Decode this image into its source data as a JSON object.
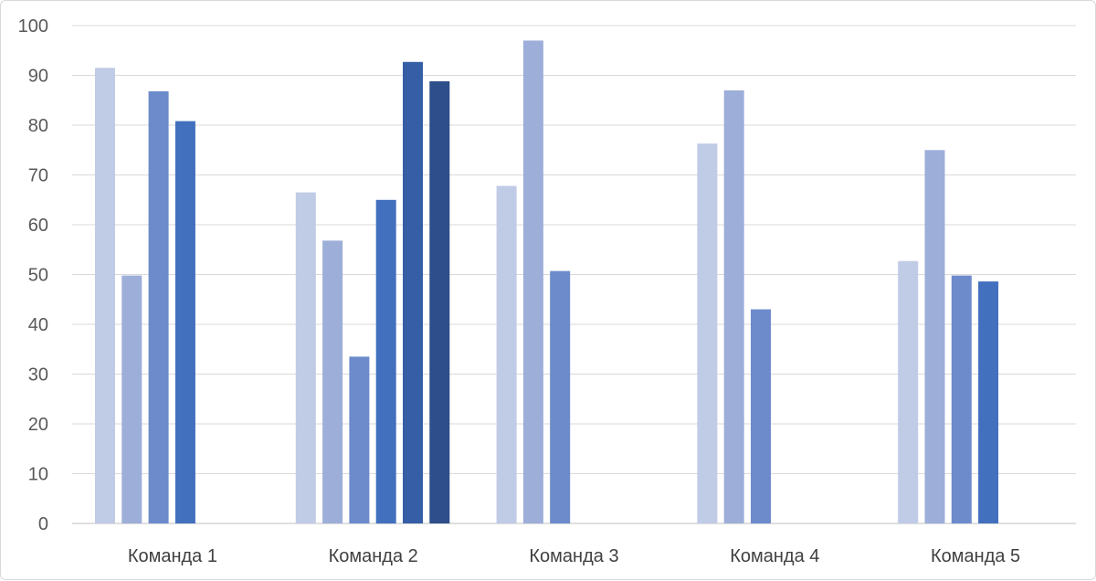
{
  "chart_data": {
    "type": "bar",
    "categories": [
      "Команда 1",
      "Команда 2",
      "Команда 3",
      "Команда 4",
      "Команда 5"
    ],
    "series": [
      {
        "values": [
          91.5,
          66.5,
          67.8,
          76.3,
          52.7
        ],
        "color": "#c0cbe6"
      },
      {
        "values": [
          49.8,
          56.8,
          97.0,
          87.0,
          75.0
        ],
        "color": "#9daed9"
      },
      {
        "values": [
          86.8,
          33.5,
          50.7,
          43.0,
          49.8
        ],
        "color": "#6d8acb"
      },
      {
        "values": [
          80.8,
          65.0,
          null,
          null,
          48.6
        ],
        "color": "#4270be"
      },
      {
        "values": [
          null,
          92.7,
          null,
          null,
          null
        ],
        "color": "#355ea6"
      },
      {
        "values": [
          null,
          88.8,
          null,
          null,
          null
        ],
        "color": "#2d4e8a"
      }
    ],
    "ylim": [
      0,
      100
    ],
    "yticks": [
      0,
      10,
      20,
      30,
      40,
      50,
      60,
      70,
      80,
      90,
      100
    ],
    "grid": true,
    "title": "",
    "xlabel": "",
    "ylabel": ""
  }
}
